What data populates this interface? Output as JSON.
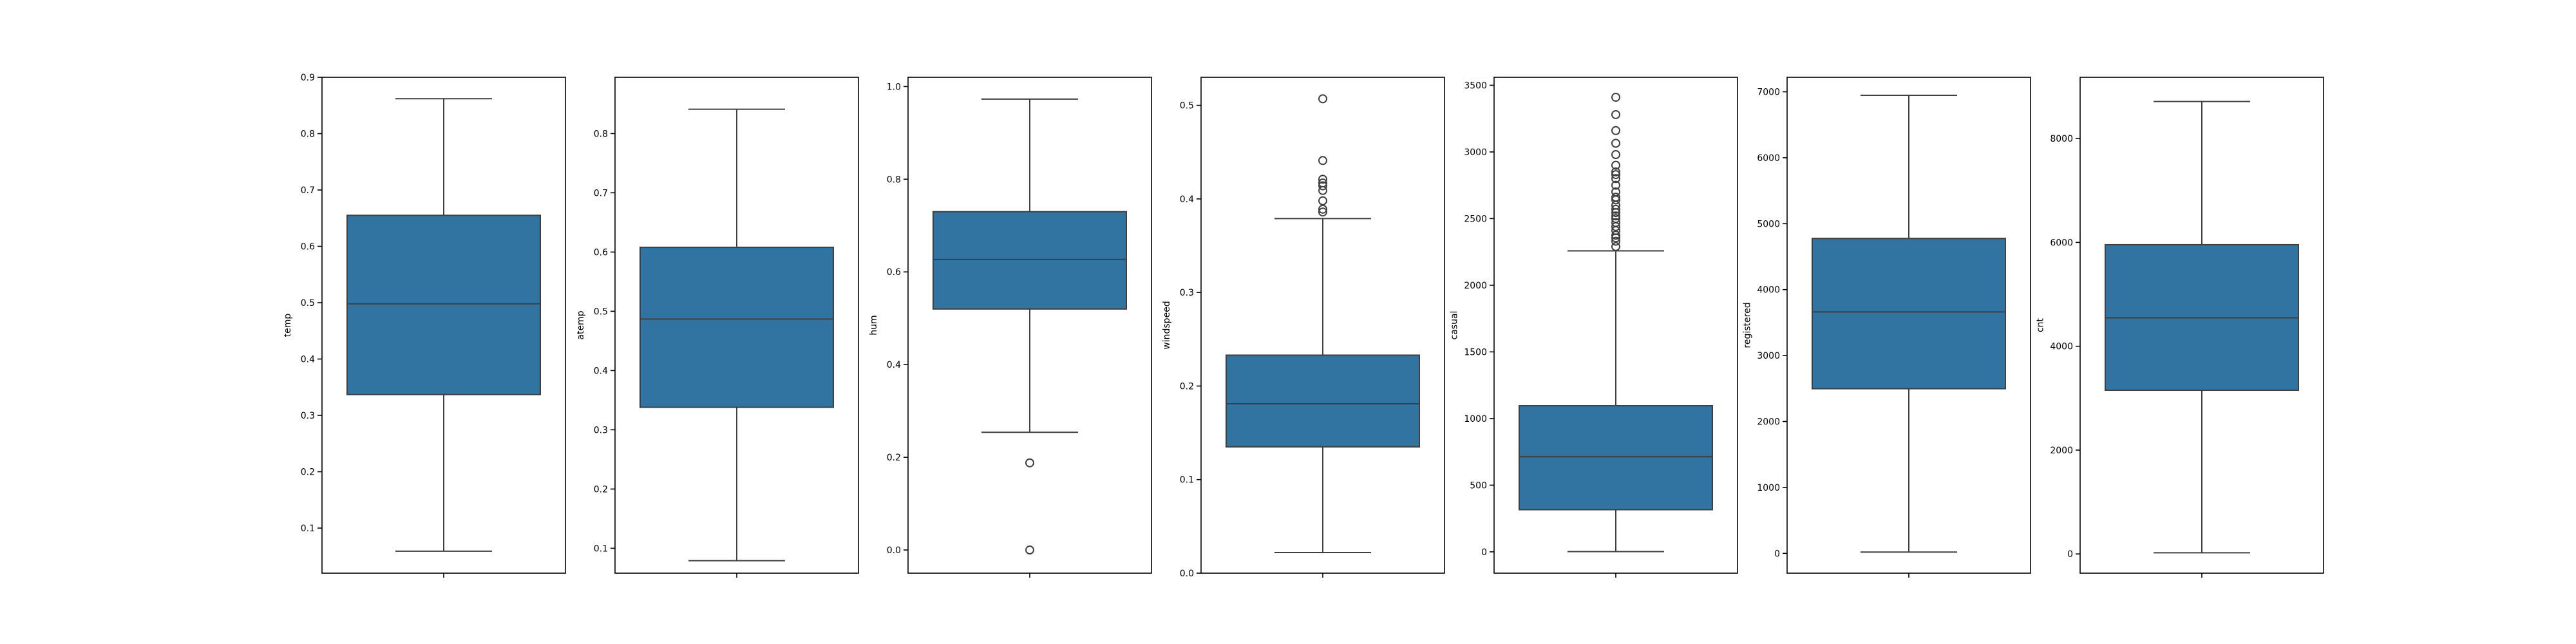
{
  "chart_data": [
    {
      "type": "box",
      "ylabel": "temp",
      "ylim": [
        0.02,
        0.9
      ],
      "yticks": [
        0.1,
        0.2,
        0.3,
        0.4,
        0.5,
        0.6,
        0.7,
        0.8,
        0.9
      ],
      "tick_labels": [
        "0.1",
        "0.2",
        "0.3",
        "0.4",
        "0.5",
        "0.6",
        "0.7",
        "0.8",
        "0.9"
      ],
      "color": "#3274a1",
      "stats": {
        "whisker_low": 0.059,
        "q1": 0.337,
        "median": 0.498,
        "q3": 0.655,
        "whisker_high": 0.862
      },
      "outliers": []
    },
    {
      "type": "box",
      "ylabel": "atemp",
      "ylim": [
        0.058,
        0.895
      ],
      "yticks": [
        0.1,
        0.2,
        0.3,
        0.4,
        0.5,
        0.6,
        0.7,
        0.8
      ],
      "tick_labels": [
        "0.1",
        "0.2",
        "0.3",
        "0.4",
        "0.5",
        "0.6",
        "0.7",
        "0.8"
      ],
      "color": "#3274a1",
      "stats": {
        "whisker_low": 0.079,
        "q1": 0.338,
        "median": 0.487,
        "q3": 0.608,
        "whisker_high": 0.841
      },
      "outliers": []
    },
    {
      "type": "box",
      "ylabel": "hum",
      "ylim": [
        -0.05,
        1.02
      ],
      "yticks": [
        0.0,
        0.2,
        0.4,
        0.6,
        0.8,
        1.0
      ],
      "tick_labels": [
        "0.0",
        "0.2",
        "0.4",
        "0.6",
        "0.8",
        "1.0"
      ],
      "color": "#3274a1",
      "stats": {
        "whisker_low": 0.254,
        "q1": 0.52,
        "median": 0.627,
        "q3": 0.73,
        "whisker_high": 0.973
      },
      "outliers": [
        0.0,
        0.188
      ]
    },
    {
      "type": "box",
      "ylabel": "windspeed",
      "ylim": [
        0.0,
        0.53
      ],
      "yticks": [
        0.0,
        0.1,
        0.2,
        0.3,
        0.4,
        0.5
      ],
      "tick_labels": [
        "0.0",
        "0.1",
        "0.2",
        "0.3",
        "0.4",
        "0.5"
      ],
      "color": "#3274a1",
      "stats": {
        "whisker_low": 0.022,
        "q1": 0.135,
        "median": 0.181,
        "q3": 0.233,
        "whisker_high": 0.379
      },
      "outliers": [
        0.386,
        0.389,
        0.398,
        0.409,
        0.414,
        0.417,
        0.421,
        0.441,
        0.507
      ]
    },
    {
      "type": "box",
      "ylabel": "casual",
      "ylim": [
        -160,
        3560
      ],
      "yticks": [
        0,
        500,
        1000,
        1500,
        2000,
        2500,
        3000,
        3500
      ],
      "tick_labels": [
        "0",
        "500",
        "1000",
        "1500",
        "2000",
        "2500",
        "3000",
        "3500"
      ],
      "color": "#3274a1",
      "stats": {
        "whisker_low": 2,
        "q1": 316,
        "median": 713,
        "q3": 1096,
        "whisker_high": 2258
      },
      "outliers": [
        2290,
        2330,
        2355,
        2375,
        2410,
        2440,
        2470,
        2500,
        2520,
        2545,
        2570,
        2600,
        2640,
        2660,
        2700,
        2750,
        2800,
        2830,
        2850,
        2900,
        2980,
        3065,
        3160,
        3280,
        3410
      ]
    },
    {
      "type": "box",
      "ylabel": "registered",
      "ylim": [
        -300,
        7220
      ],
      "yticks": [
        0,
        1000,
        2000,
        3000,
        4000,
        5000,
        6000,
        7000
      ],
      "tick_labels": [
        "0",
        "1000",
        "2000",
        "3000",
        "4000",
        "5000",
        "6000",
        "7000"
      ],
      "color": "#3274a1",
      "stats": {
        "whisker_low": 20,
        "q1": 2497,
        "median": 3662,
        "q3": 4776,
        "whisker_high": 6946
      },
      "outliers": []
    },
    {
      "type": "box",
      "ylabel": "cnt",
      "ylim": [
        -370,
        9180
      ],
      "yticks": [
        0,
        2000,
        4000,
        6000,
        8000
      ],
      "tick_labels": [
        "0",
        "2000",
        "4000",
        "6000",
        "8000"
      ],
      "color": "#3274a1",
      "stats": {
        "whisker_low": 22,
        "q1": 3152,
        "median": 4548,
        "q3": 5956,
        "whisker_high": 8714
      },
      "outliers": []
    }
  ]
}
